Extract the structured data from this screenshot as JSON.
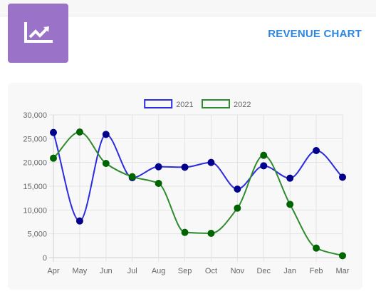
{
  "header": {
    "title": "REVENUE CHART",
    "logo_icon": "trending-up-chart-icon"
  },
  "chart_data": {
    "type": "line",
    "categories": [
      "Apr",
      "May",
      "Jun",
      "Jul",
      "Aug",
      "Sep",
      "Oct",
      "Nov",
      "Dec",
      "Jan",
      "Feb",
      "Mar"
    ],
    "y_ticks": [
      "0",
      "5,000",
      "10,000",
      "15,000",
      "20,000",
      "25,000",
      "30,000"
    ],
    "ylim": [
      0,
      30000
    ],
    "grid": true,
    "legend": "top-center",
    "series": [
      {
        "name": "2021",
        "color": "#2b2be0",
        "point_color": "#00008b",
        "values": [
          26300,
          7700,
          25900,
          16800,
          19100,
          19000,
          20000,
          14400,
          19300,
          16700,
          22500,
          16900
        ]
      },
      {
        "name": "2022",
        "color": "#2e8b2e",
        "point_color": "#006400",
        "values": [
          20900,
          26400,
          19800,
          17000,
          15600,
          5300,
          5100,
          10400,
          21500,
          11200,
          2000,
          400
        ]
      }
    ]
  }
}
